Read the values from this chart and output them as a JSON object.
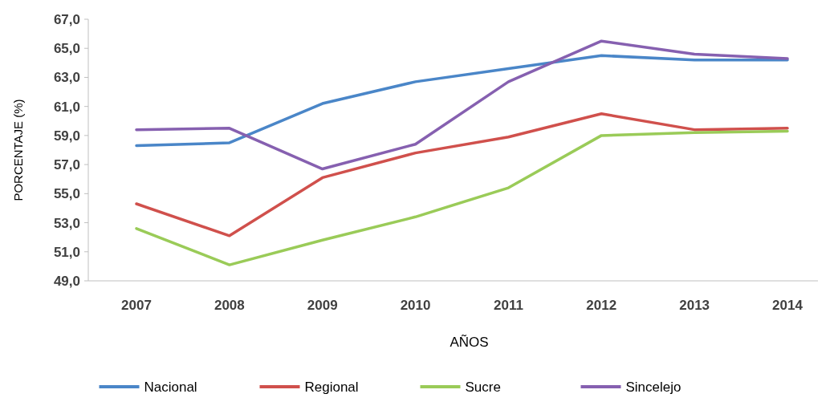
{
  "chart_data": {
    "type": "line",
    "xlabel": "AÑOS",
    "ylabel": "PORCENTAJE (%)",
    "categories": [
      "2007",
      "2008",
      "2009",
      "2010",
      "2011",
      "2012",
      "2013",
      "2014"
    ],
    "series": [
      {
        "name": "Nacional",
        "color": "#4a86c8",
        "values": [
          58.3,
          58.5,
          61.2,
          62.7,
          63.6,
          64.5,
          64.2,
          64.2
        ]
      },
      {
        "name": "Regional",
        "color": "#d0504c",
        "values": [
          54.3,
          52.1,
          56.1,
          57.8,
          58.9,
          60.5,
          59.4,
          59.5
        ]
      },
      {
        "name": "Sucre",
        "color": "#9acb58",
        "values": [
          52.6,
          50.1,
          51.8,
          53.4,
          55.4,
          59.0,
          59.2,
          59.3
        ]
      },
      {
        "name": "Sincelejo",
        "color": "#8660b0",
        "values": [
          59.4,
          59.5,
          56.7,
          58.4,
          62.7,
          65.5,
          64.6,
          64.3
        ]
      }
    ],
    "ylim": [
      49,
      67
    ],
    "yticks": [
      {
        "value": 49,
        "label": "49,0"
      },
      {
        "value": 51,
        "label": "51,0"
      },
      {
        "value": 53,
        "label": "53,0"
      },
      {
        "value": 55,
        "label": "55,0"
      },
      {
        "value": 57,
        "label": "57,0"
      },
      {
        "value": 59,
        "label": "59,0"
      },
      {
        "value": 61,
        "label": "61,0"
      },
      {
        "value": 63,
        "label": "63,0"
      },
      {
        "value": 65,
        "label": "65,0"
      },
      {
        "value": 67,
        "label": "67,0"
      }
    ],
    "legend": "bottom",
    "marker": "none",
    "line_style": "solid"
  }
}
